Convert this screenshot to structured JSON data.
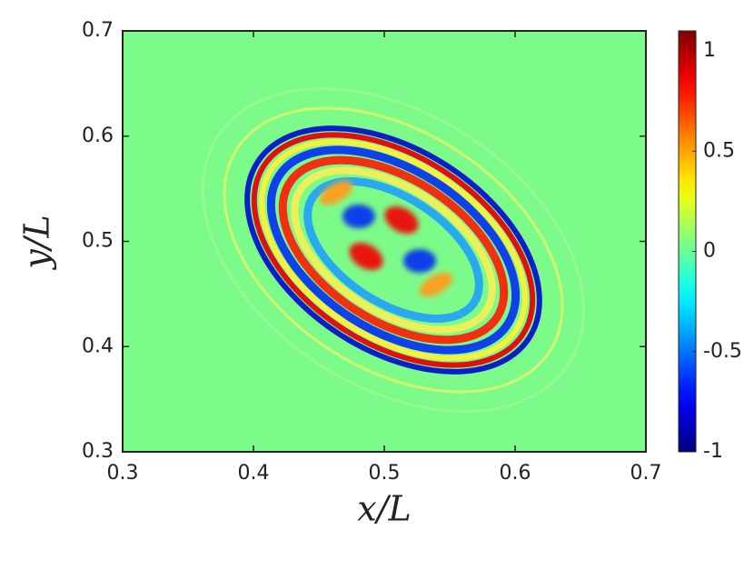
{
  "chart_data": {
    "type": "heatmap",
    "xlabel": "x/L",
    "ylabel": "y/L",
    "xlim": [
      0.3,
      0.7
    ],
    "ylim": [
      0.3,
      0.7
    ],
    "xticks": [
      0.3,
      0.4,
      0.5,
      0.6,
      0.7
    ],
    "yticks": [
      0.3,
      0.4,
      0.5,
      0.6,
      0.7
    ],
    "clim": [
      -1,
      1.1
    ],
    "cticks": [
      -1,
      -0.5,
      0,
      0.5,
      1
    ],
    "colormap": "jet"
  }
}
